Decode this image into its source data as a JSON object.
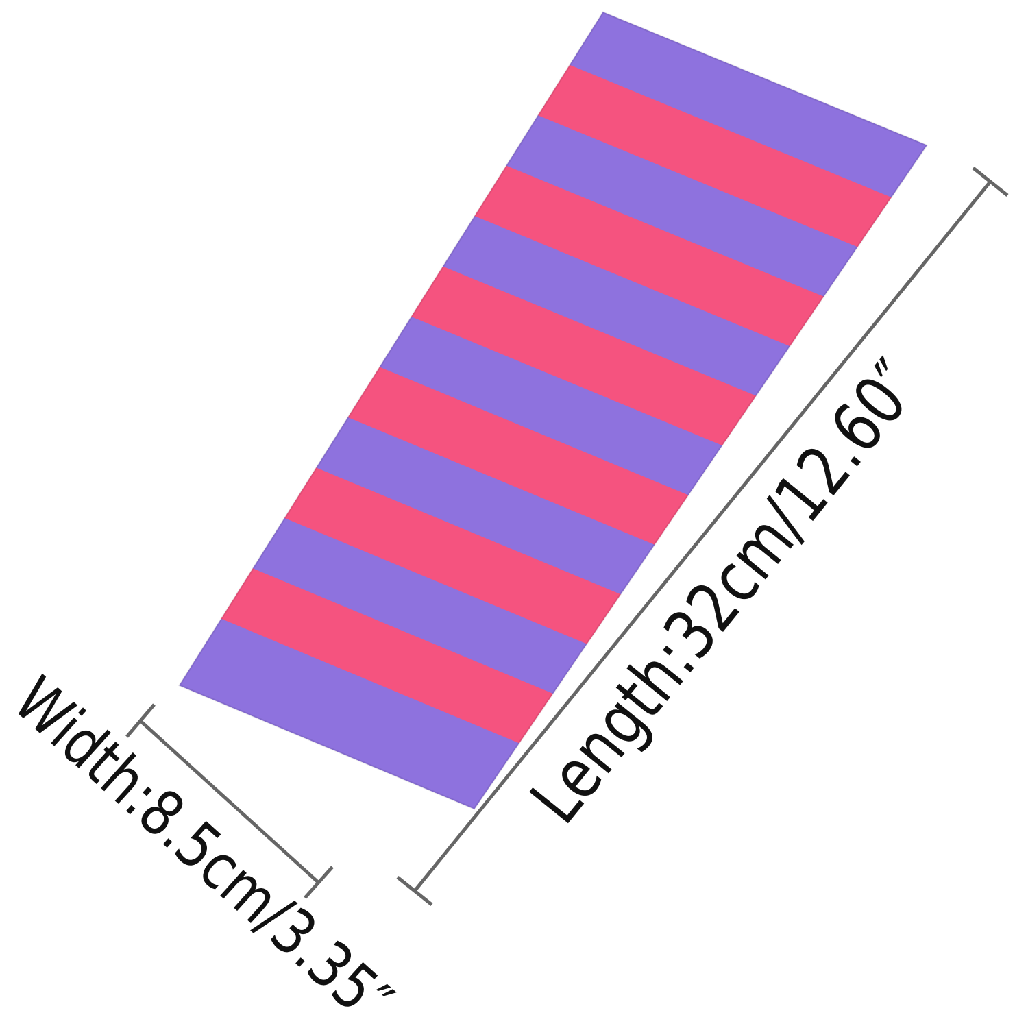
{
  "product": {
    "stripe_colors": {
      "purple": "#8E72DE",
      "pink": "#F5537F"
    },
    "stripe_pattern": [
      "purple",
      "pink",
      "purple",
      "pink",
      "purple",
      "pink",
      "purple",
      "pink",
      "purple",
      "pink",
      "purple",
      "pink",
      "purple"
    ]
  },
  "dimensions": {
    "length_label": "Length:32cm/12.60″",
    "width_label": "Width:8.5cm/3.35″",
    "line_color": "#666666"
  }
}
